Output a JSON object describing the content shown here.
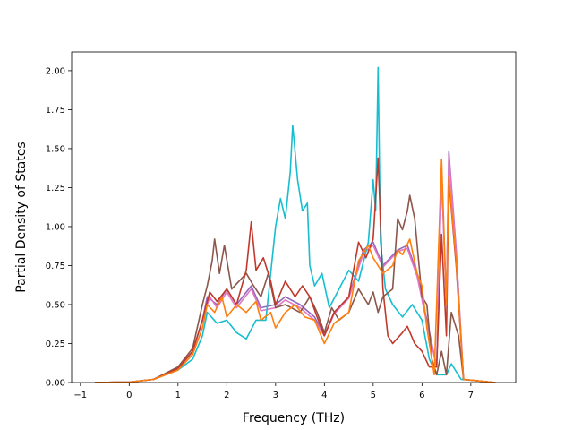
{
  "chart_data": {
    "type": "line",
    "title": "",
    "xlabel": "Frequency (THz)",
    "ylabel": "Partial Density of States",
    "xlim": [
      -1.18,
      7.92
    ],
    "ylim": [
      0,
      2.12
    ],
    "xticks": [
      -1,
      0,
      1,
      2,
      3,
      4,
      5,
      6,
      7
    ],
    "yticks": [
      0.0,
      0.25,
      0.5,
      0.75,
      1.0,
      1.25,
      1.5,
      1.75,
      2.0
    ],
    "ytick_labels": [
      "0.00",
      "0.25",
      "0.50",
      "0.75",
      "1.00",
      "1.25",
      "1.50",
      "1.75",
      "2.00"
    ],
    "grid": false,
    "legend": "none",
    "series": [
      {
        "color": "#9467bd",
        "points": [
          [
            -0.7,
            0
          ],
          [
            0,
            0.003
          ],
          [
            0.5,
            0.02
          ],
          [
            1.0,
            0.09
          ],
          [
            1.3,
            0.2
          ],
          [
            1.5,
            0.4
          ],
          [
            1.6,
            0.55
          ],
          [
            1.8,
            0.5
          ],
          [
            2.0,
            0.6
          ],
          [
            2.2,
            0.5
          ],
          [
            2.5,
            0.62
          ],
          [
            2.7,
            0.48
          ],
          [
            3.0,
            0.5
          ],
          [
            3.2,
            0.55
          ],
          [
            3.5,
            0.5
          ],
          [
            3.8,
            0.42
          ],
          [
            4.0,
            0.3
          ],
          [
            4.2,
            0.45
          ],
          [
            4.5,
            0.55
          ],
          [
            4.8,
            0.85
          ],
          [
            5.0,
            0.9
          ],
          [
            5.2,
            0.75
          ],
          [
            5.5,
            0.85
          ],
          [
            5.7,
            0.88
          ],
          [
            5.9,
            0.7
          ],
          [
            6.1,
            0.4
          ],
          [
            6.3,
            0.1
          ],
          [
            6.4,
            1.35
          ],
          [
            6.5,
            0.5
          ],
          [
            6.55,
            1.48
          ],
          [
            6.7,
            0.85
          ],
          [
            6.85,
            0.02
          ],
          [
            7.5,
            0
          ]
        ]
      },
      {
        "color": "#e377c2",
        "points": [
          [
            -0.7,
            0
          ],
          [
            0,
            0.003
          ],
          [
            0.5,
            0.02
          ],
          [
            1.0,
            0.09
          ],
          [
            1.3,
            0.2
          ],
          [
            1.5,
            0.4
          ],
          [
            1.65,
            0.55
          ],
          [
            1.8,
            0.48
          ],
          [
            2.0,
            0.58
          ],
          [
            2.2,
            0.48
          ],
          [
            2.5,
            0.6
          ],
          [
            2.7,
            0.46
          ],
          [
            3.0,
            0.48
          ],
          [
            3.2,
            0.53
          ],
          [
            3.5,
            0.48
          ],
          [
            3.8,
            0.4
          ],
          [
            4.0,
            0.3
          ],
          [
            4.2,
            0.44
          ],
          [
            4.5,
            0.54
          ],
          [
            4.8,
            0.83
          ],
          [
            5.0,
            0.88
          ],
          [
            5.2,
            0.74
          ],
          [
            5.5,
            0.84
          ],
          [
            5.7,
            0.86
          ],
          [
            5.9,
            0.68
          ],
          [
            6.1,
            0.38
          ],
          [
            6.3,
            0.1
          ],
          [
            6.4,
            1.33
          ],
          [
            6.5,
            0.5
          ],
          [
            6.55,
            1.45
          ],
          [
            6.7,
            0.83
          ],
          [
            6.85,
            0.02
          ],
          [
            7.5,
            0
          ]
        ]
      },
      {
        "color": "#17becf",
        "points": [
          [
            -0.7,
            0
          ],
          [
            0,
            0.003
          ],
          [
            0.5,
            0.02
          ],
          [
            1.0,
            0.08
          ],
          [
            1.3,
            0.15
          ],
          [
            1.5,
            0.3
          ],
          [
            1.6,
            0.45
          ],
          [
            1.8,
            0.38
          ],
          [
            2.0,
            0.4
          ],
          [
            2.2,
            0.32
          ],
          [
            2.4,
            0.28
          ],
          [
            2.6,
            0.4
          ],
          [
            2.8,
            0.4
          ],
          [
            3.0,
            1.0
          ],
          [
            3.1,
            1.18
          ],
          [
            3.2,
            1.05
          ],
          [
            3.3,
            1.35
          ],
          [
            3.35,
            1.65
          ],
          [
            3.45,
            1.3
          ],
          [
            3.55,
            1.1
          ],
          [
            3.65,
            1.15
          ],
          [
            3.7,
            0.75
          ],
          [
            3.8,
            0.62
          ],
          [
            3.95,
            0.7
          ],
          [
            4.1,
            0.48
          ],
          [
            4.3,
            0.6
          ],
          [
            4.5,
            0.72
          ],
          [
            4.7,
            0.65
          ],
          [
            4.9,
            0.9
          ],
          [
            5.0,
            1.3
          ],
          [
            5.05,
            1.1
          ],
          [
            5.1,
            2.02
          ],
          [
            5.15,
            0.9
          ],
          [
            5.25,
            0.6
          ],
          [
            5.4,
            0.5
          ],
          [
            5.6,
            0.42
          ],
          [
            5.8,
            0.5
          ],
          [
            6.0,
            0.4
          ],
          [
            6.15,
            0.15
          ],
          [
            6.3,
            0.05
          ],
          [
            6.5,
            0.05
          ],
          [
            6.6,
            0.12
          ],
          [
            6.8,
            0.02
          ],
          [
            7.5,
            0
          ]
        ]
      },
      {
        "color": "#8c564b",
        "points": [
          [
            -0.7,
            0
          ],
          [
            0,
            0.003
          ],
          [
            0.5,
            0.02
          ],
          [
            1.0,
            0.1
          ],
          [
            1.3,
            0.22
          ],
          [
            1.5,
            0.5
          ],
          [
            1.6,
            0.62
          ],
          [
            1.7,
            0.78
          ],
          [
            1.75,
            0.92
          ],
          [
            1.85,
            0.7
          ],
          [
            1.95,
            0.88
          ],
          [
            2.1,
            0.6
          ],
          [
            2.25,
            0.65
          ],
          [
            2.4,
            0.7
          ],
          [
            2.55,
            0.62
          ],
          [
            2.7,
            0.55
          ],
          [
            2.85,
            0.7
          ],
          [
            3.0,
            0.48
          ],
          [
            3.2,
            0.5
          ],
          [
            3.5,
            0.45
          ],
          [
            3.7,
            0.55
          ],
          [
            3.85,
            0.45
          ],
          [
            4.0,
            0.32
          ],
          [
            4.15,
            0.48
          ],
          [
            4.3,
            0.4
          ],
          [
            4.5,
            0.45
          ],
          [
            4.7,
            0.6
          ],
          [
            4.9,
            0.5
          ],
          [
            5.0,
            0.58
          ],
          [
            5.1,
            0.45
          ],
          [
            5.2,
            0.55
          ],
          [
            5.4,
            0.6
          ],
          [
            5.5,
            1.05
          ],
          [
            5.6,
            0.98
          ],
          [
            5.7,
            1.1
          ],
          [
            5.75,
            1.2
          ],
          [
            5.85,
            1.05
          ],
          [
            6.0,
            0.55
          ],
          [
            6.1,
            0.5
          ],
          [
            6.2,
            0.15
          ],
          [
            6.3,
            0.05
          ],
          [
            6.4,
            0.2
          ],
          [
            6.5,
            0.05
          ],
          [
            6.6,
            0.45
          ],
          [
            6.75,
            0.3
          ],
          [
            6.85,
            0.02
          ],
          [
            7.5,
            0
          ]
        ]
      },
      {
        "color": "#c0392b",
        "points": [
          [
            -0.7,
            0
          ],
          [
            0,
            0.003
          ],
          [
            0.5,
            0.02
          ],
          [
            1.0,
            0.09
          ],
          [
            1.3,
            0.2
          ],
          [
            1.5,
            0.4
          ],
          [
            1.65,
            0.58
          ],
          [
            1.8,
            0.52
          ],
          [
            2.0,
            0.6
          ],
          [
            2.2,
            0.5
          ],
          [
            2.4,
            0.72
          ],
          [
            2.5,
            1.03
          ],
          [
            2.6,
            0.72
          ],
          [
            2.75,
            0.8
          ],
          [
            2.9,
            0.65
          ],
          [
            3.0,
            0.5
          ],
          [
            3.2,
            0.65
          ],
          [
            3.4,
            0.55
          ],
          [
            3.55,
            0.62
          ],
          [
            3.7,
            0.55
          ],
          [
            3.85,
            0.42
          ],
          [
            4.0,
            0.3
          ],
          [
            4.2,
            0.45
          ],
          [
            4.5,
            0.55
          ],
          [
            4.7,
            0.9
          ],
          [
            4.85,
            0.8
          ],
          [
            5.0,
            0.92
          ],
          [
            5.1,
            1.44
          ],
          [
            5.2,
            0.6
          ],
          [
            5.3,
            0.3
          ],
          [
            5.4,
            0.25
          ],
          [
            5.6,
            0.32
          ],
          [
            5.7,
            0.36
          ],
          [
            5.85,
            0.25
          ],
          [
            6.0,
            0.2
          ],
          [
            6.15,
            0.1
          ],
          [
            6.3,
            0.1
          ],
          [
            6.4,
            0.95
          ],
          [
            6.5,
            0.3
          ],
          [
            6.55,
            1.3
          ],
          [
            6.7,
            0.75
          ],
          [
            6.85,
            0.02
          ],
          [
            7.5,
            0
          ]
        ]
      },
      {
        "color": "#ff7f0e",
        "points": [
          [
            -0.7,
            0
          ],
          [
            0,
            0.003
          ],
          [
            0.5,
            0.02
          ],
          [
            1.0,
            0.08
          ],
          [
            1.3,
            0.18
          ],
          [
            1.5,
            0.35
          ],
          [
            1.6,
            0.5
          ],
          [
            1.75,
            0.45
          ],
          [
            1.9,
            0.55
          ],
          [
            2.0,
            0.42
          ],
          [
            2.2,
            0.5
          ],
          [
            2.4,
            0.45
          ],
          [
            2.6,
            0.52
          ],
          [
            2.7,
            0.4
          ],
          [
            2.9,
            0.45
          ],
          [
            3.0,
            0.35
          ],
          [
            3.2,
            0.45
          ],
          [
            3.4,
            0.5
          ],
          [
            3.6,
            0.42
          ],
          [
            3.8,
            0.4
          ],
          [
            4.0,
            0.25
          ],
          [
            4.2,
            0.38
          ],
          [
            4.5,
            0.45
          ],
          [
            4.7,
            0.78
          ],
          [
            4.9,
            0.88
          ],
          [
            5.0,
            0.8
          ],
          [
            5.2,
            0.7
          ],
          [
            5.4,
            0.75
          ],
          [
            5.5,
            0.85
          ],
          [
            5.6,
            0.82
          ],
          [
            5.75,
            0.92
          ],
          [
            5.9,
            0.7
          ],
          [
            6.0,
            0.62
          ],
          [
            6.1,
            0.35
          ],
          [
            6.25,
            0.05
          ],
          [
            6.4,
            1.43
          ],
          [
            6.5,
            0.5
          ],
          [
            6.55,
            1.32
          ],
          [
            6.7,
            0.78
          ],
          [
            6.85,
            0.02
          ],
          [
            7.5,
            0
          ]
        ]
      }
    ]
  }
}
